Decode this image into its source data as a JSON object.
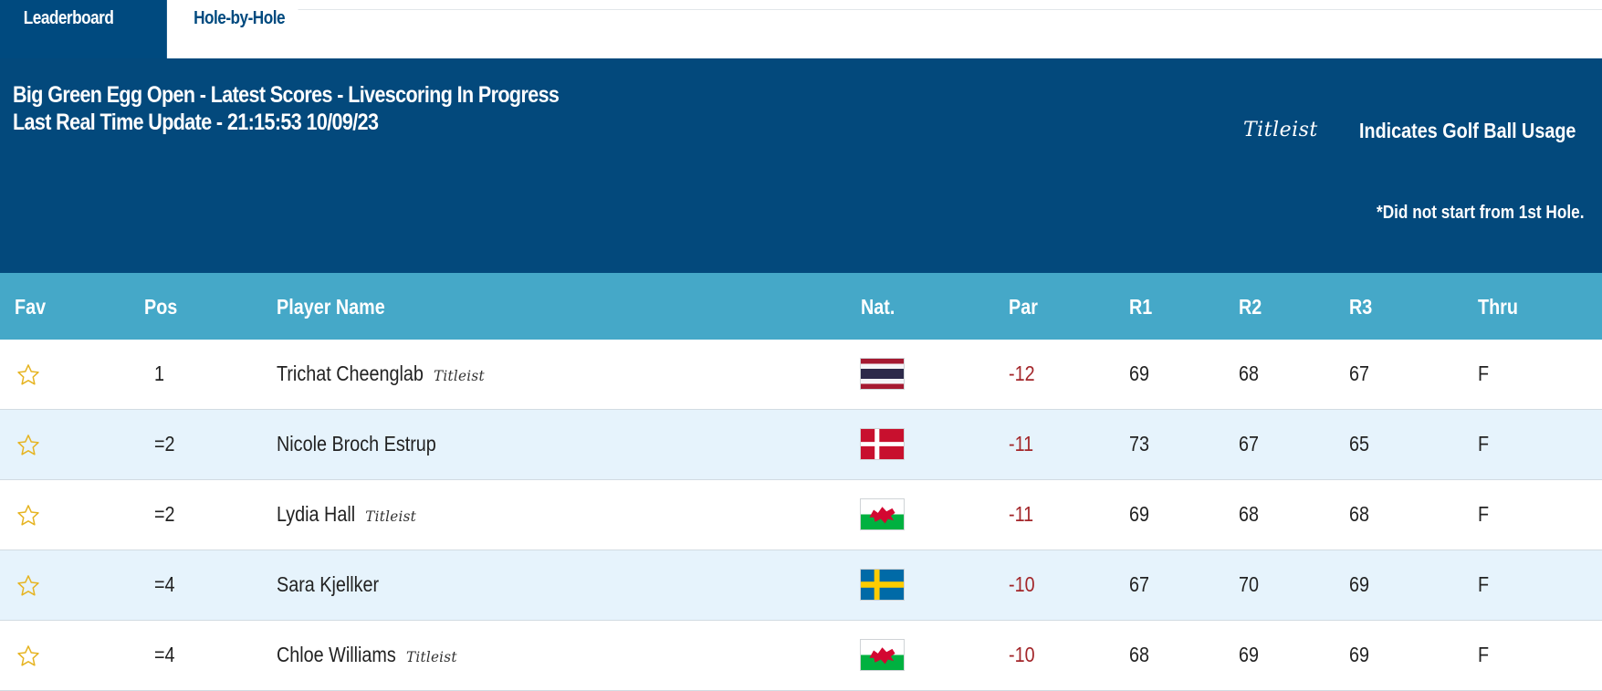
{
  "tabs": [
    {
      "label": "Leaderboard"
    },
    {
      "label": "Hole-by-Hole"
    }
  ],
  "banner": {
    "title": "Big Green Egg Open - Latest Scores - Livescoring In Progress",
    "update": "Last Real Time Update - 21:15:53 10/09/23",
    "titleist_logo": "Titleist",
    "titleist_legend": "Indicates Golf Ball Usage",
    "note": "*Did not start from 1st Hole."
  },
  "columns": {
    "fav": "Fav",
    "pos": "Pos",
    "player": "Player Name",
    "nat": "Nat.",
    "par": "Par",
    "r1": "R1",
    "r2": "R2",
    "r3": "R3",
    "thru": "Thru"
  },
  "rows": [
    {
      "pos": "1",
      "name": "Trichat Cheenglab",
      "titleist": "Titleist",
      "flag": "thailand-flag",
      "par": "-12",
      "r1": "69",
      "r2": "68",
      "r3": "67",
      "thru": "F"
    },
    {
      "pos": "=2",
      "name": "Nicole Broch Estrup",
      "titleist": "",
      "flag": "denmark-flag",
      "par": "-11",
      "r1": "73",
      "r2": "67",
      "r3": "65",
      "thru": "F"
    },
    {
      "pos": "=2",
      "name": "Lydia Hall",
      "titleist": "Titleist",
      "flag": "wales-flag",
      "par": "-11",
      "r1": "69",
      "r2": "68",
      "r3": "68",
      "thru": "F"
    },
    {
      "pos": "=4",
      "name": "Sara Kjellker",
      "titleist": "",
      "flag": "sweden-flag",
      "par": "-10",
      "r1": "67",
      "r2": "70",
      "r3": "69",
      "thru": "F"
    },
    {
      "pos": "=4",
      "name": "Chloe Williams",
      "titleist": "Titleist",
      "flag": "wales-flag",
      "par": "-10",
      "r1": "68",
      "r2": "69",
      "r3": "69",
      "thru": "F"
    }
  ],
  "colors": {
    "banner": "#03497c",
    "header": "#45a8c8",
    "alt_row": "#e6f3fc",
    "par_red": "#a3262a",
    "star": "#e6b422"
  }
}
